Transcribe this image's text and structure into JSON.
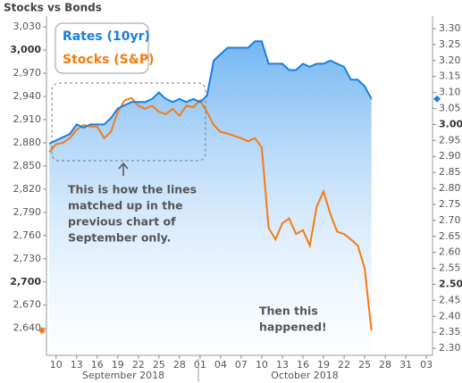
{
  "chart_data": {
    "type": "line",
    "title": "Stocks vs Bonds",
    "x": [
      9,
      10,
      11,
      12,
      13,
      14,
      15,
      16,
      17,
      18,
      19,
      20,
      21,
      22,
      23,
      24,
      25,
      26,
      27,
      28,
      29,
      30,
      31,
      32,
      33,
      34,
      35,
      36,
      37,
      38,
      39,
      40,
      41,
      42,
      43,
      44,
      45,
      46,
      47,
      48,
      49,
      50,
      51,
      52,
      53,
      54,
      55,
      56
    ],
    "xlim": [
      8.6,
      64.9
    ],
    "xticks": [
      10,
      13,
      16,
      19,
      22,
      25,
      28,
      {
        "value": 31,
        "label": "01"
      },
      {
        "value": 34,
        "label": "04"
      },
      {
        "value": 37,
        "label": "07"
      },
      {
        "value": 40,
        "label": "10"
      },
      {
        "value": 43,
        "label": "13"
      },
      {
        "value": 46,
        "label": "16"
      },
      {
        "value": 49,
        "label": "19"
      },
      {
        "value": 52,
        "label": "22"
      },
      {
        "value": 55,
        "label": "25"
      },
      {
        "value": 58,
        "label": "28"
      },
      {
        "value": 61,
        "label": "31"
      },
      {
        "value": 64,
        "label": "03"
      }
    ],
    "x_groups": [
      "September 2018",
      "October 2018"
    ],
    "ylim": [
      2605,
      3044
    ],
    "yticks": [
      {
        "value": 3030,
        "label": "3,030"
      },
      {
        "value": 3000,
        "label": "3,000",
        "bold": true
      },
      {
        "value": 2970,
        "label": "2,970"
      },
      {
        "value": 2940,
        "label": "2,940"
      },
      {
        "value": 2910,
        "label": "2,910"
      },
      {
        "value": 2880,
        "label": "2,880"
      },
      {
        "value": 2850,
        "label": "2,850"
      },
      {
        "value": 2820,
        "label": "2,820"
      },
      {
        "value": 2790,
        "label": "2,790"
      },
      {
        "value": 2760,
        "label": "2,760"
      },
      {
        "value": 2730,
        "label": "2,730"
      },
      {
        "value": 2700,
        "label": "2,700",
        "bold": true
      },
      {
        "value": 2670,
        "label": "2,670"
      },
      {
        "value": 2640,
        "label": "2,640"
      }
    ],
    "y2lim": [
      2.278,
      3.339
    ],
    "y2ticks": [
      {
        "value": 3.3,
        "label": "3.30"
      },
      {
        "value": 3.25,
        "label": "3.25"
      },
      {
        "value": 3.2,
        "label": "3.20"
      },
      {
        "value": 3.15,
        "label": "3.15"
      },
      {
        "value": 3.1,
        "label": "3.10"
      },
      {
        "value": 3.05,
        "label": "3.05"
      },
      {
        "value": 3.0,
        "label": "3.00",
        "bold": true
      },
      {
        "value": 2.95,
        "label": "2.95"
      },
      {
        "value": 2.9,
        "label": "2.90"
      },
      {
        "value": 2.85,
        "label": "2.85"
      },
      {
        "value": 2.8,
        "label": "2.80"
      },
      {
        "value": 2.75,
        "label": "2.75"
      },
      {
        "value": 2.7,
        "label": "2.70"
      },
      {
        "value": 2.65,
        "label": "2.65"
      },
      {
        "value": 2.6,
        "label": "2.60"
      },
      {
        "value": 2.55,
        "label": "2.55"
      },
      {
        "value": 2.5,
        "label": "2.50",
        "bold": true
      },
      {
        "value": 2.45,
        "label": "2.45"
      },
      {
        "value": 2.4,
        "label": "2.40"
      },
      {
        "value": 2.35,
        "label": "2.35"
      },
      {
        "value": 2.3,
        "label": "2.30"
      }
    ],
    "series": [
      {
        "name": "Rates (10yr)",
        "color": "#1a7ee0",
        "axis": "y2",
        "area": true,
        "values": [
          2.94,
          2.95,
          2.96,
          2.97,
          3.0,
          2.99,
          3.0,
          3.0,
          3.0,
          3.02,
          3.05,
          3.06,
          3.07,
          3.07,
          3.07,
          3.08,
          3.1,
          3.08,
          3.07,
          3.08,
          3.07,
          3.08,
          3.07,
          3.09,
          3.2,
          3.22,
          3.24,
          3.24,
          3.24,
          3.24,
          3.26,
          3.26,
          3.19,
          3.19,
          3.19,
          3.17,
          3.17,
          3.19,
          3.18,
          3.19,
          3.19,
          3.2,
          3.19,
          3.18,
          3.14,
          3.14,
          3.12,
          3.08
        ]
      },
      {
        "name": "Stocks (S&P)",
        "color": "#f47c12",
        "axis": "y",
        "values": [
          2868,
          2878,
          2880,
          2886,
          2897,
          2903,
          2901,
          2901,
          2886,
          2894,
          2920,
          2935,
          2938,
          2928,
          2924,
          2928,
          2920,
          2917,
          2924,
          2915,
          2928,
          2926,
          2935,
          2920,
          2903,
          2894,
          2892,
          2889,
          2886,
          2882,
          2886,
          2874,
          2770,
          2755,
          2776,
          2782,
          2762,
          2767,
          2747,
          2797,
          2817,
          2788,
          2765,
          2762,
          2755,
          2747,
          2718,
          2637
        ]
      }
    ],
    "annotations": [
      [
        "This is how the lines",
        "matched up in the",
        "previous chart of",
        "September only."
      ],
      [
        "Then this",
        "happened!"
      ]
    ]
  }
}
